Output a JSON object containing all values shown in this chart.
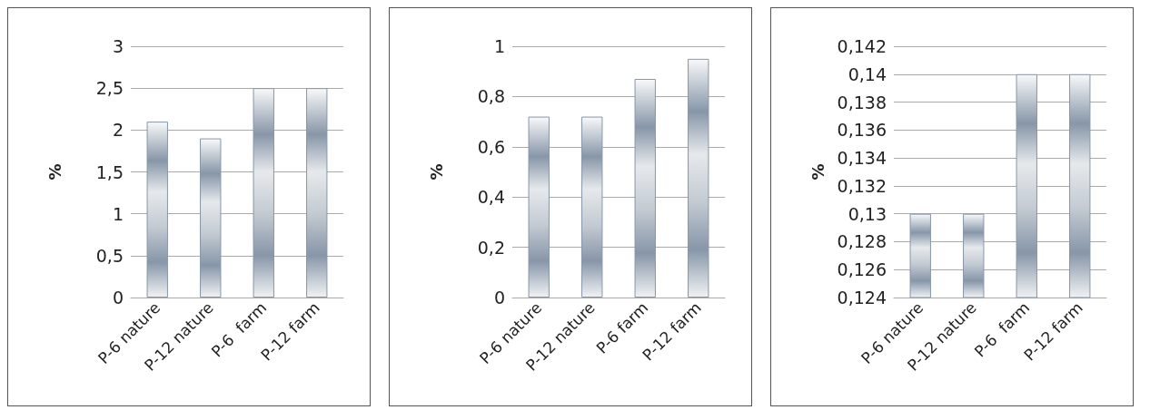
{
  "chart_data": [
    {
      "type": "bar",
      "ylabel": "%",
      "categories": [
        "P-6 nature",
        "P-12 nature",
        "P-6  farm",
        "P-12 farm"
      ],
      "values": [
        2.1,
        1.9,
        2.5,
        2.5
      ],
      "color": "#8796a8",
      "ylim": [
        0,
        3
      ],
      "yticks": [
        0,
        {
          "value": 0.5,
          "label": "0,5"
        },
        1,
        {
          "value": 1.5,
          "label": "1,5"
        },
        2,
        {
          "value": 2.5,
          "label": "2,5"
        },
        3
      ],
      "grid": "y"
    },
    {
      "type": "bar",
      "ylabel": "%",
      "categories": [
        "P-6 nature",
        "P-12 nature",
        "P-6 farm",
        "P-12 farm"
      ],
      "values": [
        0.72,
        0.72,
        0.87,
        0.95
      ],
      "color": "#8796a8",
      "ylim": [
        0,
        1
      ],
      "yticks": [
        0,
        {
          "value": 0.2,
          "label": "0,2"
        },
        {
          "value": 0.4,
          "label": "0,4"
        },
        {
          "value": 0.6,
          "label": "0,6"
        },
        {
          "value": 0.8,
          "label": "0,8"
        },
        1
      ],
      "grid": "y"
    },
    {
      "type": "bar",
      "ylabel": "%",
      "categories": [
        "P-6 nature",
        "P-12 nature",
        "P-6  farm",
        "P-12 farm"
      ],
      "values": [
        0.13,
        0.13,
        0.14,
        0.14
      ],
      "color": "#8796a8",
      "ylim": [
        0.124,
        0.142
      ],
      "yticks": [
        {
          "value": 0.124,
          "label": "0,124"
        },
        {
          "value": 0.126,
          "label": "0,126"
        },
        {
          "value": 0.128,
          "label": "0,128"
        },
        {
          "value": 0.13,
          "label": "0,13"
        },
        {
          "value": 0.132,
          "label": "0,132"
        },
        {
          "value": 0.134,
          "label": "0,134"
        },
        {
          "value": 0.136,
          "label": "0,136"
        },
        {
          "value": 0.138,
          "label": "0,138"
        },
        {
          "value": 0.14,
          "label": "0,14"
        },
        {
          "value": 0.142,
          "label": "0,142"
        }
      ],
      "grid": "y"
    }
  ]
}
